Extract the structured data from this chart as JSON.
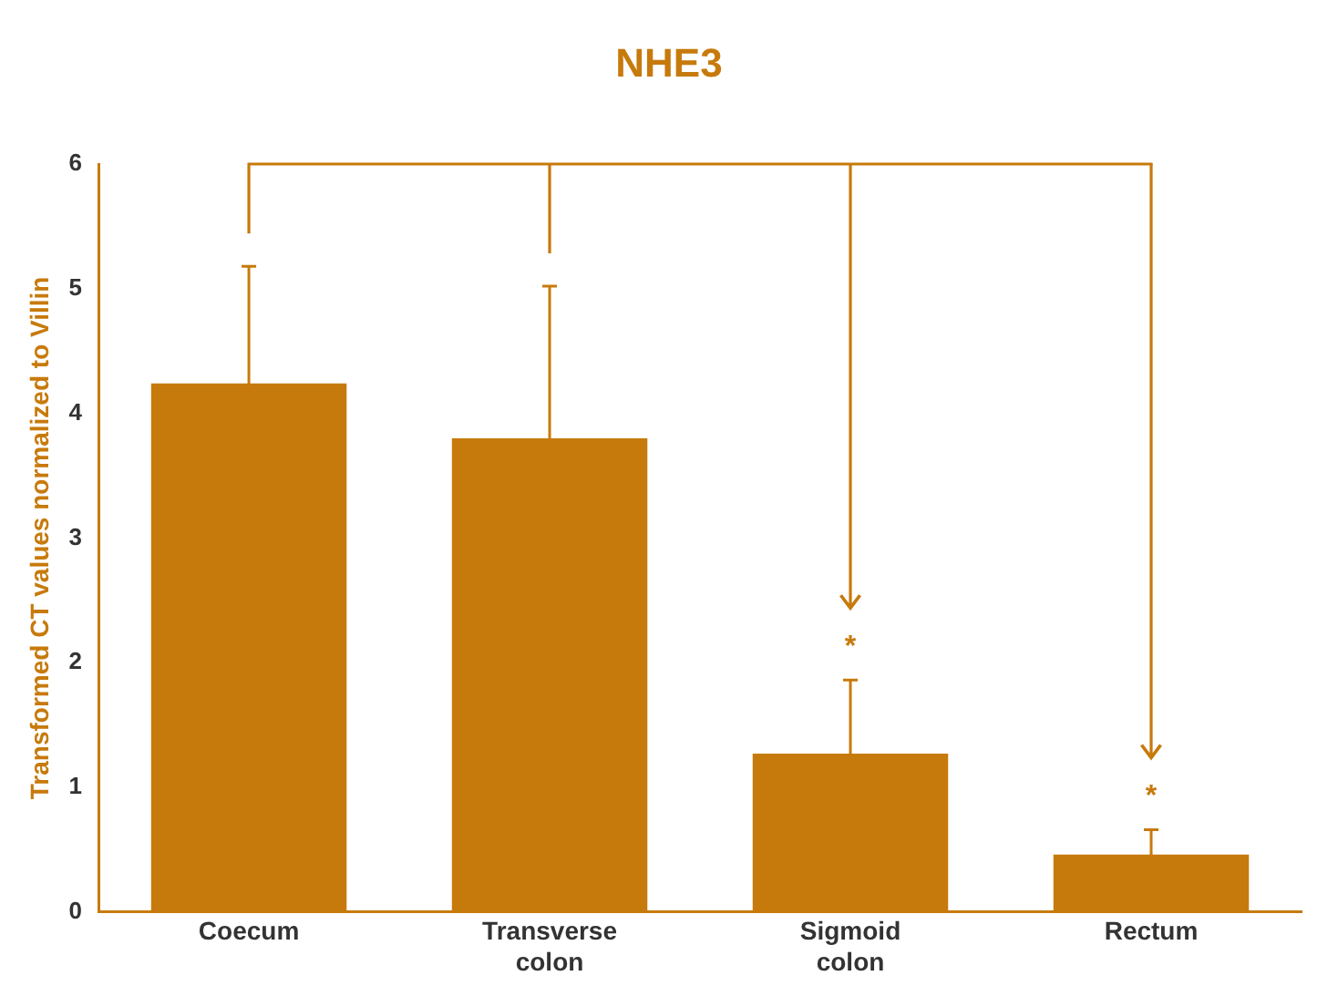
{
  "chart_data": {
    "type": "bar",
    "title": "NHE3",
    "ylabel": "Transformed CT values normalized to Villin",
    "categories": [
      "Coecum",
      "Transverse colon",
      "Sigmoid colon",
      "Rectum"
    ],
    "values": [
      4.24,
      3.8,
      1.27,
      0.46
    ],
    "color": "#c77a0c",
    "errors": [
      0.94,
      1.22,
      0.59,
      0.2
    ],
    "ylim": [
      0,
      6
    ],
    "yticks": [
      0,
      1,
      2,
      3,
      4,
      5,
      6
    ],
    "grid": false,
    "legend": false,
    "annotations": [
      "*",
      "*"
    ]
  }
}
